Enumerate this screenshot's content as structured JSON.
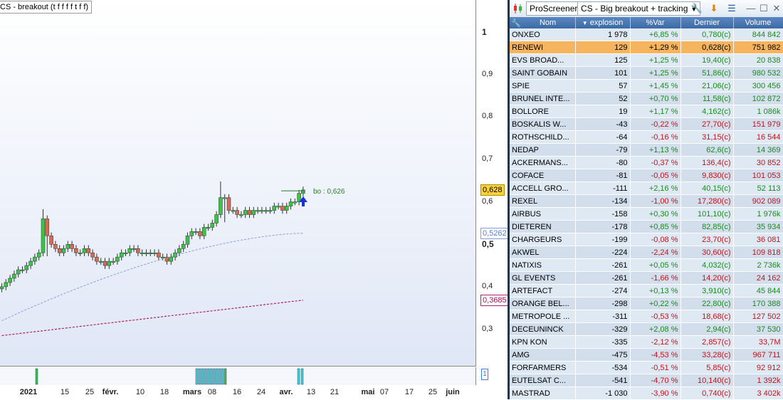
{
  "chart": {
    "title": "CS - breakout (t f f f f t f f)",
    "y_ticks": [
      {
        "label": "1",
        "value": 1,
        "major": true
      },
      {
        "label": "0,9",
        "value": 0.9
      },
      {
        "label": "0,8",
        "value": 0.8
      },
      {
        "label": "0,7",
        "value": 0.7
      },
      {
        "label": "0,6",
        "value": 0.6
      },
      {
        "label": "0,5",
        "value": 0.5,
        "major": true
      },
      {
        "label": "0,4",
        "value": 0.4
      },
      {
        "label": "0,3",
        "value": 0.3
      }
    ],
    "price_flags": [
      {
        "label": "0,628",
        "value": 0.628,
        "bg": "#ffd23c",
        "border": "#b08a00",
        "color": "#000"
      },
      {
        "label": "0,5262",
        "value": 0.5262,
        "bg": "#ffffff",
        "border": "#7f9fd6",
        "color": "#5a7ccc"
      },
      {
        "label": "0,3685",
        "value": 0.3685,
        "bg": "#ffffff",
        "border": "#b0207a",
        "color": "#a0105a"
      }
    ],
    "x_ticks": [
      {
        "label": "2021",
        "major": true
      },
      {
        "label": "15"
      },
      {
        "label": "25"
      },
      {
        "label": "févr.",
        "major": true
      },
      {
        "label": "10"
      },
      {
        "label": "18"
      },
      {
        "label": "mars",
        "major": true
      },
      {
        "label": "08"
      },
      {
        "label": "16"
      },
      {
        "label": "24"
      },
      {
        "label": "avr.",
        "major": true
      },
      {
        "label": "13"
      },
      {
        "label": "21"
      },
      {
        "label": "mai",
        "major": true
      },
      {
        "label": "07"
      },
      {
        "label": "17"
      },
      {
        "label": "25"
      },
      {
        "label": "juin",
        "major": true
      }
    ],
    "breakout_label": "bo : 0,626",
    "breakout_value": 0.626,
    "indicator_label": "1",
    "colors": {
      "up": "#3dc24a",
      "down": "#d66b55",
      "ma_short": "#8a9fd8",
      "ma_long": "#b0206a",
      "indicator": "#39d6d6"
    }
  },
  "screener": {
    "app_label": "ProScreener",
    "screen_name": "CS - Big breakout + tracking",
    "icons": {
      "logo": "candlestick-icon",
      "settings": "wrench-icon",
      "download": "download-arrow-icon",
      "list": "list-icon"
    },
    "columns": [
      "Nom",
      "explosion",
      "%Var",
      "Dernier",
      "Volume"
    ],
    "rows": [
      {
        "name": "ONXEO",
        "explosion": "1 978",
        "var": "+6,85 %",
        "last": "0,780(c)",
        "volume": "844 842"
      },
      {
        "name": "RENEWI",
        "explosion": "129",
        "var": "+1,29 %",
        "last": "0,628(c)",
        "volume": "751 982",
        "selected": true
      },
      {
        "name": "EVS BROAD...",
        "explosion": "125",
        "var": "+1,25 %",
        "last": "19,40(c)",
        "volume": "20 838"
      },
      {
        "name": "SAINT GOBAIN",
        "explosion": "101",
        "var": "+1,25 %",
        "last": "51,86(c)",
        "volume": "980 532"
      },
      {
        "name": "SPIE",
        "explosion": "57",
        "var": "+1,45 %",
        "last": "21,06(c)",
        "volume": "300 456"
      },
      {
        "name": "BRUNEL INTE...",
        "explosion": "52",
        "var": "+0,70 %",
        "last": "11,58(c)",
        "volume": "102 872"
      },
      {
        "name": "BOLLORE",
        "explosion": "19",
        "var": "+1,17 %",
        "last": "4,162(c)",
        "volume": "1 086k"
      },
      {
        "name": "BOSKALIS W...",
        "explosion": "-43",
        "var": "-0,22 %",
        "last": "27,70(c)",
        "volume": "151 979"
      },
      {
        "name": "ROTHSCHILD...",
        "explosion": "-64",
        "var": "-0,16 %",
        "last": "31,15(c)",
        "volume": "16 544"
      },
      {
        "name": "NEDAP",
        "explosion": "-79",
        "var": "+1,13 %",
        "last": "62,6(c)",
        "volume": "14 369"
      },
      {
        "name": "ACKERMANS...",
        "explosion": "-80",
        "var": "-0,37 %",
        "last": "136,4(c)",
        "volume": "30 852"
      },
      {
        "name": "COFACE",
        "explosion": "-81",
        "var": "-0,05 %",
        "last": "9,830(c)",
        "volume": "101 053"
      },
      {
        "name": "ACCELL GRO...",
        "explosion": "-111",
        "var": "+2,16 %",
        "last": "40,15(c)",
        "volume": "52 113"
      },
      {
        "name": "REXEL",
        "explosion": "-134",
        "var": "-1,00 %",
        "last": "17,280(c)",
        "volume": "902 089"
      },
      {
        "name": "AIRBUS",
        "explosion": "-158",
        "var": "+0,30 %",
        "last": "101,10(c)",
        "volume": "1 976k"
      },
      {
        "name": "DIETEREN",
        "explosion": "-178",
        "var": "+0,85 %",
        "last": "82,85(c)",
        "volume": "35 934"
      },
      {
        "name": "CHARGEURS",
        "explosion": "-199",
        "var": "-0,08 %",
        "last": "23,70(c)",
        "volume": "36 081"
      },
      {
        "name": "AKWEL",
        "explosion": "-224",
        "var": "-2,24 %",
        "last": "30,60(c)",
        "volume": "109 818"
      },
      {
        "name": "NATIXIS",
        "explosion": "-261",
        "var": "+0,05 %",
        "last": "4,032(c)",
        "volume": "2 736k"
      },
      {
        "name": "GL EVENTS",
        "explosion": "-261",
        "var": "-1,66 %",
        "last": "14,20(c)",
        "volume": "24 162"
      },
      {
        "name": "ARTEFACT",
        "explosion": "-274",
        "var": "+0,13 %",
        "last": "3,910(c)",
        "volume": "45 844"
      },
      {
        "name": "ORANGE BEL...",
        "explosion": "-298",
        "var": "+0,22 %",
        "last": "22,80(c)",
        "volume": "170 388"
      },
      {
        "name": "METROPOLE ...",
        "explosion": "-311",
        "var": "-0,53 %",
        "last": "18,68(c)",
        "volume": "127 502"
      },
      {
        "name": "DECEUNINCK",
        "explosion": "-329",
        "var": "+2,08 %",
        "last": "2,94(c)",
        "volume": "37 530"
      },
      {
        "name": "KPN KON",
        "explosion": "-335",
        "var": "-2,12 %",
        "last": "2,857(c)",
        "volume": "33,7M"
      },
      {
        "name": "AMG",
        "explosion": "-475",
        "var": "-4,53 %",
        "last": "33,28(c)",
        "volume": "967 711"
      },
      {
        "name": "FORFARMERS",
        "explosion": "-534",
        "var": "-0,51 %",
        "last": "5,85(c)",
        "volume": "92 912"
      },
      {
        "name": "EUTELSAT C...",
        "explosion": "-541",
        "var": "-4,70 %",
        "last": "10,140(c)",
        "volume": "1 392k"
      },
      {
        "name": "MASTRAD",
        "explosion": "-1 030",
        "var": "-3,90 %",
        "last": "0,740(c)",
        "volume": "3 402k"
      }
    ]
  }
}
